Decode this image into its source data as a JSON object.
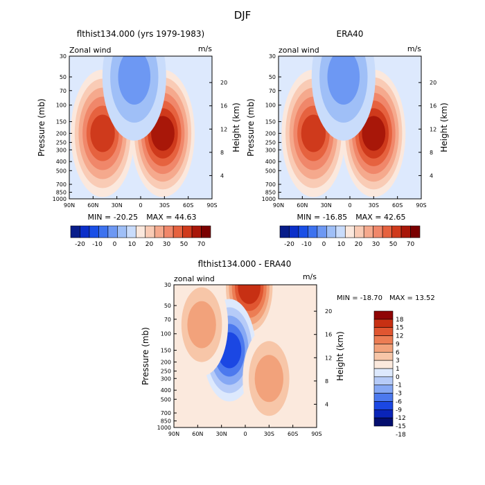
{
  "figure": {
    "title": "DJF"
  },
  "palettes": {
    "full": [
      "#081d8a",
      "#0b2fc9",
      "#1a4fe6",
      "#3d72ef",
      "#6d98f3",
      "#9fbff7",
      "#c9dcfb",
      "#fbe8dd",
      "#f9cbb5",
      "#f5a98d",
      "#f0876a",
      "#e6623f",
      "#cf3a1c",
      "#a81709",
      "#7a0000"
    ],
    "diff": [
      "#040e6e",
      "#0a24b8",
      "#1b47e3",
      "#4c79ee",
      "#86a8f4",
      "#b6cbf8",
      "#dde9fd",
      "#fbe9dd",
      "#f7c6a8",
      "#f2a27b",
      "#ec7d54",
      "#e05631",
      "#c73013",
      "#8f0505"
    ]
  },
  "chart_data": [
    {
      "type": "heatmap",
      "title": "flthist134.000 (yrs 1979-1983)",
      "subtitle": "Zonal wind",
      "units": "m/s",
      "ylabel": "Pressure (mb)",
      "ylabel_right": "Height (km)",
      "x": [
        "90N",
        "60N",
        "30N",
        "0",
        "30S",
        "60S",
        "90S"
      ],
      "y": [
        "30",
        "50",
        "70",
        "100",
        "150",
        "200",
        "250",
        "300",
        "400",
        "500",
        "700",
        "850",
        "1000"
      ],
      "y_right": [
        "20",
        "16",
        "12",
        "8",
        "4"
      ],
      "min_label": "MIN = -20.25",
      "max_label": "MAX = 44.63",
      "colorbar": [
        "-20",
        "-10",
        "0",
        "10",
        "20",
        "30",
        "50",
        "70"
      ],
      "features": [
        {
          "lat": -28,
          "p": 200,
          "sign": 1,
          "amp": 44
        },
        {
          "lat": 48,
          "p": 200,
          "sign": 1,
          "amp": 35
        },
        {
          "lat": 8,
          "p": 50,
          "sign": -1,
          "amp": 20
        }
      ]
    },
    {
      "type": "heatmap",
      "title": "ERA40",
      "subtitle": "zonal wind",
      "units": "m/s",
      "ylabel": "Pressure (mb)",
      "ylabel_right": "Height (km)",
      "x": [
        "90N",
        "60N",
        "30N",
        "0",
        "30S",
        "60S",
        "90S"
      ],
      "y": [
        "30",
        "50",
        "70",
        "100",
        "150",
        "200",
        "250",
        "300",
        "400",
        "500",
        "700",
        "850",
        "1000"
      ],
      "y_right": [
        "20",
        "16",
        "12",
        "8",
        "4"
      ],
      "min_label": "MIN = -16.85",
      "max_label": "MAX = 42.65",
      "colorbar": [
        "-20",
        "-10",
        "0",
        "10",
        "20",
        "30",
        "50",
        "70"
      ],
      "features": [
        {
          "lat": -30,
          "p": 200,
          "sign": 1,
          "amp": 42
        },
        {
          "lat": 46,
          "p": 200,
          "sign": 1,
          "amp": 33
        },
        {
          "lat": 8,
          "p": 50,
          "sign": -1,
          "amp": 17
        }
      ]
    },
    {
      "type": "heatmap",
      "title": "flthist134.000 - ERA40",
      "subtitle": "zonal wind",
      "units": "m/s",
      "ylabel": "Pressure (mb)",
      "ylabel_right": "Height (km)",
      "x": [
        "90N",
        "60N",
        "30N",
        "0",
        "30S",
        "60S",
        "90S"
      ],
      "y": [
        "30",
        "50",
        "70",
        "100",
        "150",
        "200",
        "250",
        "300",
        "400",
        "500",
        "700",
        "850",
        "1000"
      ],
      "y_right": [
        "20",
        "16",
        "12",
        "8",
        "4"
      ],
      "min_label": "MIN = -18.70",
      "max_label": "MAX = 13.52",
      "colorbar": [
        "18",
        "15",
        "12",
        "9",
        "6",
        "3",
        "1",
        "0",
        "-1",
        "-3",
        "-6",
        "-9",
        "-12",
        "-15",
        "-18"
      ],
      "features": [
        {
          "lat": -5,
          "p": 32,
          "sign": 1,
          "amp": 13
        },
        {
          "lat": 20,
          "p": 150,
          "sign": -1,
          "amp": 10
        },
        {
          "lat": 55,
          "p": 80,
          "sign": 1,
          "amp": 5
        },
        {
          "lat": -30,
          "p": 300,
          "sign": 1,
          "amp": 3
        }
      ]
    }
  ]
}
